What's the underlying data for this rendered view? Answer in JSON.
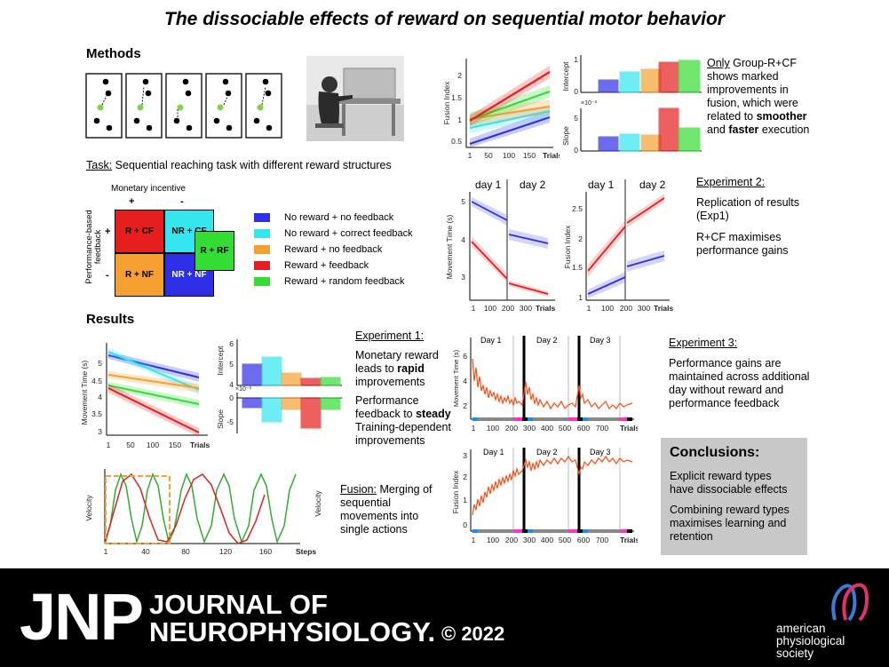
{
  "title": "The dissociable effects of reward on sequential motor behavior",
  "methods": {
    "heading": "Methods",
    "task_label": "Task:",
    "task_text": "Sequential reaching task with different reward structures",
    "matrix": {
      "top_header": "Monetary incentive",
      "plus": "+",
      "minus": "-",
      "side_header": "Performance-based feedback",
      "cells": [
        "R + CF",
        "NR + CF",
        "R + NF",
        "NR + NF"
      ],
      "extra": "R + RF"
    },
    "legend": [
      {
        "label": "No reward + no feedback",
        "color": "#2e2ee6"
      },
      {
        "label": "No reward + correct feedback",
        "color": "#33e6f0"
      },
      {
        "label": "Reward + no feedback",
        "color": "#f5a030"
      },
      {
        "label": "Reward + feedback",
        "color": "#e61e1e"
      },
      {
        "label": "Reward + random feedback",
        "color": "#33dd33"
      }
    ]
  },
  "top_fusion": {
    "ylabel": "Fusion Index",
    "yticks": [
      "2",
      "1.5",
      "1",
      "0.5"
    ],
    "xticks": [
      "1",
      "50",
      "100",
      "150"
    ],
    "xlabel": "Trials",
    "intercept_label": "Intercept",
    "slope_label": "Slope",
    "exp_note": "×10⁻³",
    "intercept_ticks": [
      "1",
      "0"
    ],
    "slope_ticks": [
      "5",
      "0"
    ]
  },
  "summary1": {
    "only": "Only",
    "rest": " Group-R+CF shows marked improvements in fusion, which were related to ",
    "smoother": "smoother",
    "and": " and ",
    "faster": "faster",
    "end": " execution"
  },
  "exp2_charts": {
    "day1": "day 1",
    "day2": "day 2",
    "mt_ylabel": "Movement Time (s)",
    "mt_yticks": [
      "5",
      "4",
      "3"
    ],
    "fi_ylabel": "Fusion Index",
    "fi_yticks": [
      "2.5",
      "2",
      "1.5",
      "1"
    ],
    "xticks": [
      "1",
      "100",
      "200",
      "300"
    ],
    "xlabel": "Trials"
  },
  "exp2": {
    "heading": "Experiment 2:",
    "p1": "Replication of results (Exp1)",
    "p2": "R+CF maximises performance gains"
  },
  "results": {
    "heading": "Results",
    "mt_ylabel": "Movement Time (s)",
    "mt_yticks": [
      "5",
      "4.5",
      "4",
      "3.5",
      "3"
    ],
    "xticks": [
      "1",
      "50",
      "100",
      "150"
    ],
    "xlabel": "Trials",
    "intercept_label": "Intercept",
    "slope_label": "Slope",
    "intercept_ticks": [
      "6",
      "5",
      "4"
    ],
    "slope_ticks": [
      "0",
      "-5"
    ],
    "exp_note": "×10⁻³"
  },
  "exp1": {
    "heading": "Experiment 1:",
    "p1a": "Monetary reward leads to ",
    "p1b": "rapid",
    "p1c": " improvements",
    "p2a": "Performance feedback to ",
    "p2b": "steady",
    "p2c": " Training-dependent improvements"
  },
  "velocity": {
    "ylabel": "Velocity",
    "ylabel_right": "Velocity",
    "xticks": [
      "1",
      "40",
      "80",
      "120",
      "160"
    ],
    "xlabel": "Steps"
  },
  "fusion_note": {
    "label": "Fusion:",
    "text": " Merging of sequential movements into single actions"
  },
  "exp3_charts": {
    "days": [
      "Day 1",
      "Day 2",
      "Day 3"
    ],
    "mt_ylabel": "Movement Time (s)",
    "mt_yticks": [
      "6",
      "4",
      "2"
    ],
    "fi_ylabel": "Fusion Index",
    "fi_yticks": [
      "3",
      "2",
      "1",
      "0"
    ],
    "xticks": [
      "1",
      "100",
      "200",
      "300",
      "400",
      "500",
      "600",
      "700"
    ],
    "xlabel": "Trials"
  },
  "exp3": {
    "heading": "Experiment 3:",
    "text": "Performance gains are maintained across additional day without reward and performance feedback"
  },
  "conclusions": {
    "heading": "Conclusions:",
    "p1": "Explicit reward types have dissociable effects",
    "p2": "Combining reward types maximises learning and retention"
  },
  "footer": {
    "jnp": "JNP",
    "journal_line1": "JOURNAL OF",
    "journal_line2": "NEUROPHYSIOLOGY.",
    "copyright": "© 2022",
    "aps1": "american",
    "aps2": "physiological",
    "aps3": "society"
  }
}
